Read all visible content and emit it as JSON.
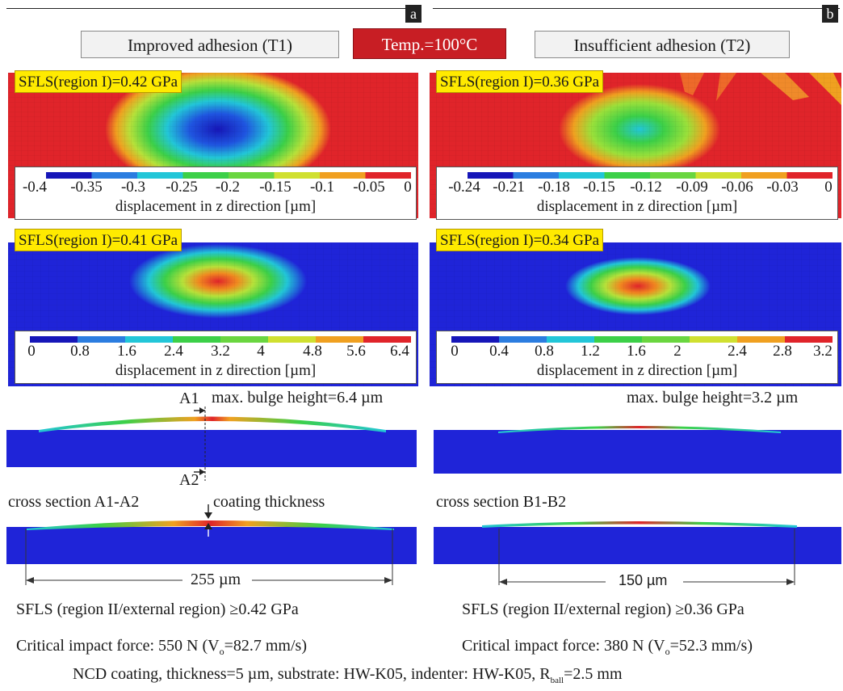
{
  "panel_a": {
    "tag": "a",
    "header": "Improved adhesion (T1)",
    "map_top": {
      "sfls": "SFLS(region I)=0.42 GPa",
      "legend_ticks": [
        "-0.4",
        "-0.35",
        "-0.3",
        "-0.25",
        "-0.2",
        "-0.15",
        "-0.1",
        "-0.05",
        "0"
      ],
      "legend_title": "displacement in z direction [µm]"
    },
    "map_bottom": {
      "sfls": "SFLS(region I)=0.41 GPa",
      "legend_ticks": [
        "0",
        "0.8",
        "1.6",
        "2.4",
        "3.2",
        "4",
        "4.8",
        "5.6",
        "6.4"
      ],
      "legend_title": "displacement in z direction [µm]"
    },
    "bulge": "max. bulge height=6.4 µm",
    "a1": "A1",
    "a2": "A2",
    "cross_section": "cross section A1-A2",
    "coating_thickness": "coating thickness",
    "dimension": "255 µm",
    "sfls_external": "SFLS (region II/external region) ≥0.42 GPa",
    "critical_force": "Critical impact force: 550 N (V",
    "critical_sub": "o",
    "critical_tail": "=82.7 mm/s)"
  },
  "panel_b": {
    "tag": "b",
    "header": "Insufficient adhesion (T2)",
    "map_top": {
      "sfls": "SFLS(region I)=0.36 GPa",
      "legend_ticks": [
        "-0.24",
        "-0.21",
        "-0.18",
        "-0.15",
        "-0.12",
        "-0.09",
        "-0.06",
        "-0.03",
        "0"
      ],
      "legend_title": "displacement in z direction [µm]"
    },
    "map_bottom": {
      "sfls": "SFLS(region I)=0.34 GPa",
      "legend_ticks": [
        "0",
        "0.4",
        "0.8",
        "1.2",
        "1.6",
        "2",
        "2.4",
        "2.8",
        "3.2"
      ],
      "legend_title": "displacement in z direction [µm]"
    },
    "bulge": "max. bulge height=3.2 µm",
    "cross_section": "cross section B1-B2",
    "dimension": "150 µm",
    "sfls_external": "SFLS (region II/external region) ≥0.36 GPa",
    "critical_force": "Critical impact force: 380 N (V",
    "critical_sub": "o",
    "critical_tail": "=52.3 mm/s)"
  },
  "temp": "Temp.=100°C",
  "footer": "NCD coating, thickness=5 µm, substrate: HW-K05, indenter: HW-K05, R",
  "footer_sub": "ball",
  "footer_tail": "=2.5 mm",
  "colors": {
    "blue": "#1f24d8",
    "red": "#e0242a",
    "yellow_label": "#ffea00",
    "temp_red": "#c81e24"
  }
}
